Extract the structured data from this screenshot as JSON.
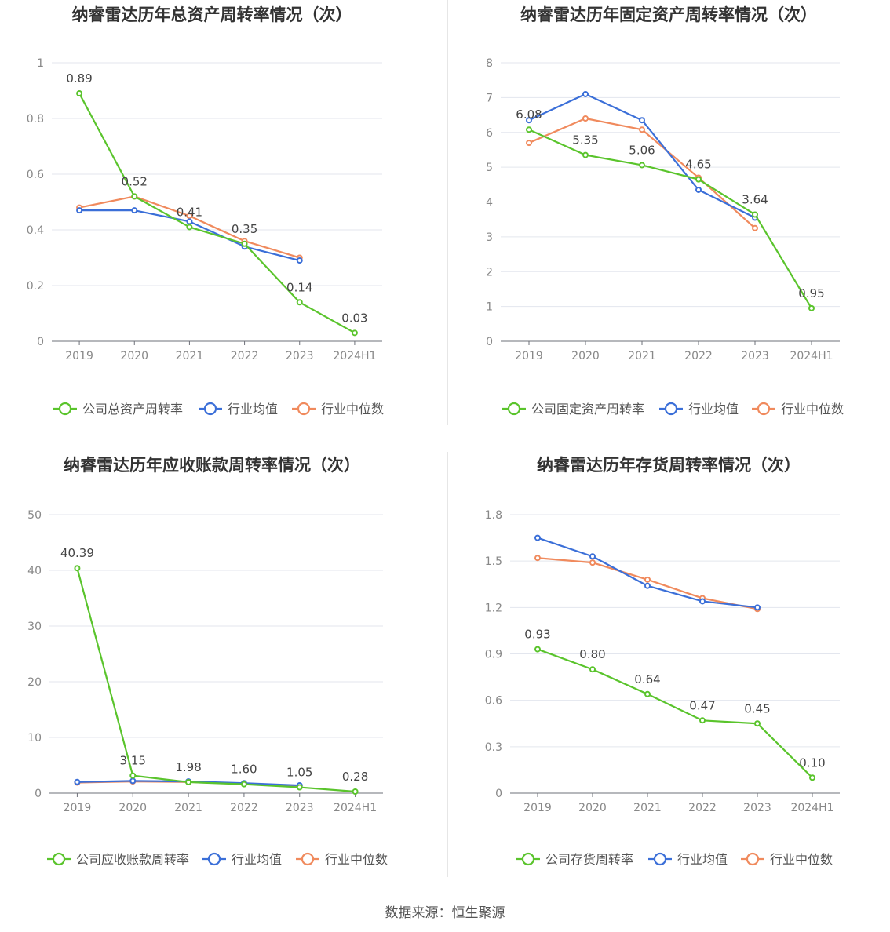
{
  "colors": {
    "company": "#5ac42c",
    "industry_mean": "#3b6fd8",
    "industry_median": "#f08a5d"
  },
  "legend": {
    "industry_mean": "行业均值",
    "industry_median": "行业中位数"
  },
  "source_note": "数据来源：恒生聚源",
  "chart_data": [
    {
      "type": "line",
      "title": "纳睿雷达历年总资产周转率情况（次）",
      "categories": [
        "2019",
        "2020",
        "2021",
        "2022",
        "2023",
        "2024H1"
      ],
      "ylim": [
        0,
        1
      ],
      "yticks": [
        "0",
        "0.2",
        "0.4",
        "0.6",
        "0.8",
        "1"
      ],
      "grid": true,
      "legend_position": "bottom",
      "series": [
        {
          "name": "公司总资产周转率",
          "key": "company",
          "values": [
            0.89,
            0.52,
            0.41,
            0.35,
            0.14,
            0.03
          ],
          "labels": [
            "0.89",
            "0.52",
            "0.41",
            "0.35",
            "0.14",
            "0.03"
          ]
        },
        {
          "name": "行业均值",
          "key": "industry_mean",
          "values": [
            0.47,
            0.47,
            0.43,
            0.34,
            0.29,
            null
          ]
        },
        {
          "name": "行业中位数",
          "key": "industry_median",
          "values": [
            0.48,
            0.52,
            0.45,
            0.36,
            0.3,
            null
          ]
        }
      ]
    },
    {
      "type": "line",
      "title": "纳睿雷达历年固定资产周转率情况（次）",
      "categories": [
        "2019",
        "2020",
        "2021",
        "2022",
        "2023",
        "2024H1"
      ],
      "ylim": [
        0,
        8
      ],
      "yticks": [
        "0",
        "1",
        "2",
        "3",
        "4",
        "5",
        "6",
        "7",
        "8"
      ],
      "grid": true,
      "legend_position": "bottom",
      "series": [
        {
          "name": "公司固定资产周转率",
          "key": "company",
          "values": [
            6.08,
            5.35,
            5.06,
            4.65,
            3.64,
            0.95
          ],
          "labels": [
            "6.08",
            "5.35",
            "5.06",
            "4.65",
            "3.64",
            "0.95"
          ]
        },
        {
          "name": "行业均值",
          "key": "industry_mean",
          "values": [
            6.35,
            7.1,
            6.35,
            4.35,
            3.55,
            null
          ]
        },
        {
          "name": "行业中位数",
          "key": "industry_median",
          "values": [
            5.7,
            6.4,
            6.08,
            4.7,
            3.25,
            null
          ]
        }
      ]
    },
    {
      "type": "line",
      "title": "纳睿雷达历年应收账款周转率情况（次）",
      "categories": [
        "2019",
        "2020",
        "2021",
        "2022",
        "2023",
        "2024H1"
      ],
      "ylim": [
        0,
        50
      ],
      "yticks": [
        "0",
        "10",
        "20",
        "30",
        "40",
        "50"
      ],
      "grid": true,
      "legend_position": "bottom",
      "series": [
        {
          "name": "公司应收账款周转率",
          "key": "company",
          "values": [
            40.39,
            3.15,
            1.98,
            1.6,
            1.05,
            0.28
          ],
          "labels": [
            "40.39",
            "3.15",
            "1.98",
            "1.60",
            "1.05",
            "0.28"
          ]
        },
        {
          "name": "行业均值",
          "key": "industry_mean",
          "values": [
            2.0,
            2.2,
            2.1,
            1.8,
            1.4,
            null
          ]
        },
        {
          "name": "行业中位数",
          "key": "industry_median",
          "values": [
            1.9,
            2.1,
            2.0,
            1.7,
            1.3,
            null
          ]
        }
      ]
    },
    {
      "type": "line",
      "title": "纳睿雷达历年存货周转率情况（次）",
      "categories": [
        "2019",
        "2020",
        "2021",
        "2022",
        "2023",
        "2024H1"
      ],
      "ylim": [
        0,
        1.8
      ],
      "yticks": [
        "0",
        "0.3",
        "0.6",
        "0.9",
        "1.2",
        "1.5",
        "1.8"
      ],
      "grid": true,
      "legend_position": "bottom",
      "series": [
        {
          "name": "公司存货周转率",
          "key": "company",
          "values": [
            0.93,
            0.8,
            0.64,
            0.47,
            0.45,
            0.1
          ],
          "labels": [
            "0.93",
            "0.80",
            "0.64",
            "0.47",
            "0.45",
            "0.10"
          ]
        },
        {
          "name": "行业均值",
          "key": "industry_mean",
          "values": [
            1.65,
            1.53,
            1.34,
            1.24,
            1.2,
            null
          ]
        },
        {
          "name": "行业中位数",
          "key": "industry_median",
          "values": [
            1.52,
            1.49,
            1.38,
            1.26,
            1.19,
            null
          ]
        }
      ]
    }
  ]
}
